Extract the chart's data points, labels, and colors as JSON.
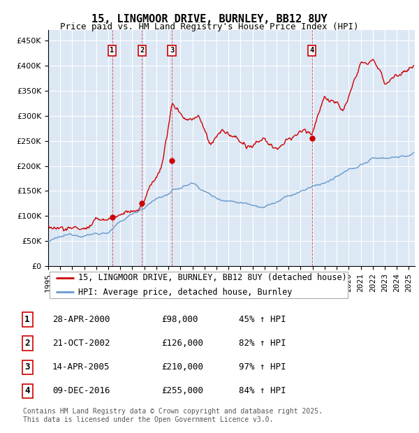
{
  "title": "15, LINGMOOR DRIVE, BURNLEY, BB12 8UY",
  "subtitle": "Price paid vs. HM Land Registry's House Price Index (HPI)",
  "ylim": [
    0,
    470000
  ],
  "yticks": [
    0,
    50000,
    100000,
    150000,
    200000,
    250000,
    300000,
    350000,
    400000,
    450000
  ],
  "xmin": 1995.0,
  "xmax": 2025.5,
  "background_color": "#dde8f5",
  "grid_color": "#ffffff",
  "legend_label_red": "15, LINGMOOR DRIVE, BURNLEY, BB12 8UY (detached house)",
  "legend_label_blue": "HPI: Average price, detached house, Burnley",
  "transactions": [
    {
      "num": 1,
      "date": "28-APR-2000",
      "price": "£98,000",
      "pct": "45% ↑ HPI",
      "x_year": 2000.32
    },
    {
      "num": 2,
      "date": "21-OCT-2002",
      "price": "£126,000",
      "pct": "82% ↑ HPI",
      "x_year": 2002.8
    },
    {
      "num": 3,
      "date": "14-APR-2005",
      "price": "£210,000",
      "pct": "97% ↑ HPI",
      "x_year": 2005.29
    },
    {
      "num": 4,
      "date": "09-DEC-2016",
      "price": "£255,000",
      "pct": "84% ↑ HPI",
      "x_year": 2016.94
    }
  ],
  "footer_line1": "Contains HM Land Registry data © Crown copyright and database right 2025.",
  "footer_line2": "This data is licensed under the Open Government Licence v3.0.",
  "red_color": "#cc0000",
  "blue_color": "#6699cc",
  "red_dot_color": "#cc0000",
  "title_fontsize": 11,
  "subtitle_fontsize": 9,
  "tick_fontsize": 8,
  "legend_fontsize": 8.5,
  "table_fontsize": 9,
  "footer_fontsize": 7
}
